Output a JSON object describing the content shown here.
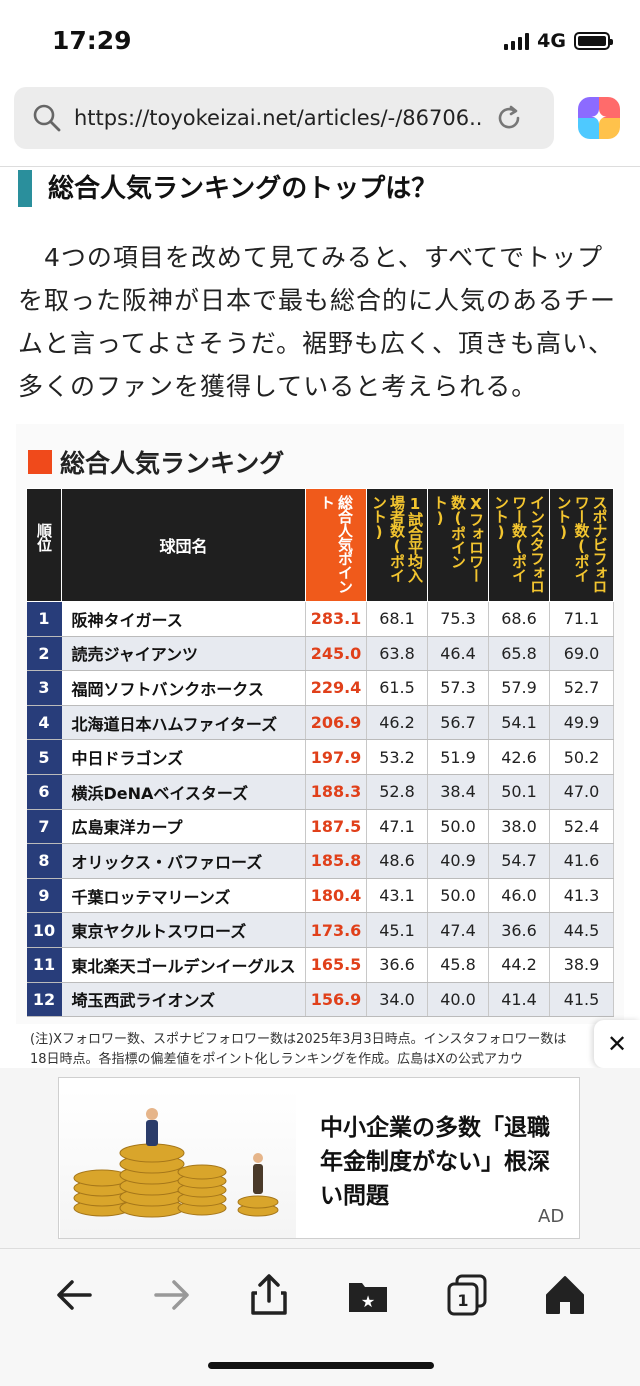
{
  "status": {
    "time": "17:29",
    "network": "4G"
  },
  "browser": {
    "url": "https://toyokeizai.net/articles/-/86706..."
  },
  "article": {
    "heading": "総合人気ランキングのトップは？",
    "paragraph": "4つの項目を改めて見てみると、すべてでトップを取った阪神が日本で最も総合的に人気のあるチームと言ってよさそうだ。裾野も広く、頂きも高い、多くのファンを獲得していると考えられる。"
  },
  "ranking": {
    "title": "総合人気ランキング",
    "columns": {
      "rank": "順位",
      "team": "球団名",
      "total": "総合人気ポイント",
      "attendance": "1試合平均入場者数(ポイント)",
      "x_followers": "Xフォロワー数(ポイント)",
      "insta_followers": "インスタフォロワー数(ポイント)",
      "sponavi_followers": "スポナビフォロワー数(ポイント)"
    },
    "rows": [
      {
        "rank": "1",
        "team": "阪神タイガース",
        "total": "283.1",
        "attendance": "68.1",
        "x": "75.3",
        "insta": "68.6",
        "sponavi": "71.1"
      },
      {
        "rank": "2",
        "team": "読売ジャイアンツ",
        "total": "245.0",
        "attendance": "63.8",
        "x": "46.4",
        "insta": "65.8",
        "sponavi": "69.0"
      },
      {
        "rank": "3",
        "team": "福岡ソフトバンクホークス",
        "total": "229.4",
        "attendance": "61.5",
        "x": "57.3",
        "insta": "57.9",
        "sponavi": "52.7"
      },
      {
        "rank": "4",
        "team": "北海道日本ハムファイターズ",
        "total": "206.9",
        "attendance": "46.2",
        "x": "56.7",
        "insta": "54.1",
        "sponavi": "49.9"
      },
      {
        "rank": "5",
        "team": "中日ドラゴンズ",
        "total": "197.9",
        "attendance": "53.2",
        "x": "51.9",
        "insta": "42.6",
        "sponavi": "50.2"
      },
      {
        "rank": "6",
        "team": "横浜DeNAベイスターズ",
        "total": "188.3",
        "attendance": "52.8",
        "x": "38.4",
        "insta": "50.1",
        "sponavi": "47.0"
      },
      {
        "rank": "7",
        "team": "広島東洋カープ",
        "total": "187.5",
        "attendance": "47.1",
        "x": "50.0",
        "insta": "38.0",
        "sponavi": "52.4"
      },
      {
        "rank": "8",
        "team": "オリックス・バファローズ",
        "total": "185.8",
        "attendance": "48.6",
        "x": "40.9",
        "insta": "54.7",
        "sponavi": "41.6"
      },
      {
        "rank": "9",
        "team": "千葉ロッテマリーンズ",
        "total": "180.4",
        "attendance": "43.1",
        "x": "50.0",
        "insta": "46.0",
        "sponavi": "41.3"
      },
      {
        "rank": "10",
        "team": "東京ヤクルトスワローズ",
        "total": "173.6",
        "attendance": "45.1",
        "x": "47.4",
        "insta": "36.6",
        "sponavi": "44.5"
      },
      {
        "rank": "11",
        "team": "東北楽天ゴールデンイーグルス",
        "total": "165.5",
        "attendance": "36.6",
        "x": "45.8",
        "insta": "44.2",
        "sponavi": "38.9"
      },
      {
        "rank": "12",
        "team": "埼玉西武ライオンズ",
        "total": "156.9",
        "attendance": "34.0",
        "x": "40.0",
        "insta": "41.4",
        "sponavi": "41.5"
      }
    ],
    "note_line1": "(注)Xフォロワー数、スポナビフォロワー数は2025年3月3日時点。インスタフォロワー数は",
    "note_line2": "18日時点。各指標の偏差値をポイント化しランキングを作成。広島はXの公式アカウ"
  },
  "ad": {
    "headline": "中小企業の多数「退職年金制度がない」根深い問題",
    "label": "AD"
  },
  "colors": {
    "accent_teal": "#2a8f9c",
    "accent_orange": "#f04a1b",
    "rank_blue": "#283d7a"
  }
}
